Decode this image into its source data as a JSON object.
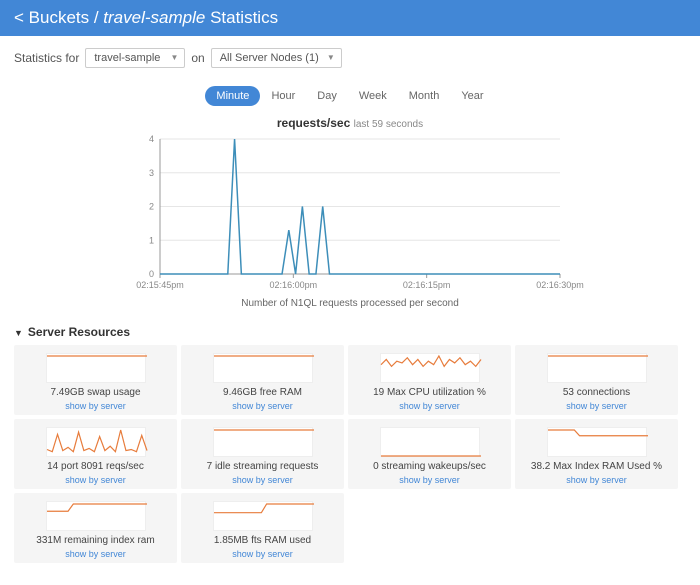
{
  "header": {
    "back_label": "< Buckets",
    "sep": " / ",
    "bucket_name": "travel-sample",
    "suffix": " Statistics"
  },
  "controls": {
    "label_prefix": "Statistics for",
    "bucket_select": "travel-sample",
    "label_on": "on",
    "nodes_select": "All Server Nodes (1)"
  },
  "time_tabs": [
    "Minute",
    "Hour",
    "Day",
    "Week",
    "Month",
    "Year"
  ],
  "time_tab_active": 0,
  "main_chart": {
    "title": "requests/sec",
    "subtitle": "last 59 seconds",
    "caption": "Number of N1QL requests processed per second",
    "ylim": [
      0,
      4
    ],
    "yticks": [
      0,
      1,
      2,
      3,
      4
    ],
    "xticks": [
      "02:15:45pm",
      "02:16:00pm",
      "02:16:15pm",
      "02:16:30pm"
    ],
    "grid_color": "#e6e6e6",
    "axis_color": "#999",
    "line_color": "#3d8eb9",
    "background": "#ffffff",
    "data": [
      0,
      0,
      0,
      0,
      0,
      0,
      0,
      0,
      0,
      0,
      0,
      4,
      0,
      0,
      0,
      0,
      0,
      0,
      0,
      1.3,
      0,
      2,
      0,
      0,
      2,
      0,
      0,
      0,
      0,
      0,
      0,
      0,
      0,
      0,
      0,
      0,
      0,
      0,
      0,
      0,
      0,
      0,
      0,
      0,
      0,
      0,
      0,
      0,
      0,
      0,
      0,
      0,
      0,
      0,
      0,
      0,
      0,
      0,
      0,
      0
    ]
  },
  "section_title": "Server Resources",
  "tile_link_label": "show by server",
  "tile_line_color": "#e77c3c",
  "tiles": [
    {
      "label": "7.49GB swap usage",
      "data": [
        18,
        18,
        18,
        18,
        18,
        18,
        18,
        18,
        18,
        18,
        18,
        18,
        18,
        18,
        18,
        18,
        18,
        18,
        18,
        18
      ]
    },
    {
      "label": "9.46GB free RAM",
      "data": [
        16,
        16,
        16,
        16,
        16,
        16,
        16,
        16,
        16,
        16,
        16,
        16,
        16,
        16,
        16,
        16,
        16,
        16,
        16,
        16
      ]
    },
    {
      "label": "19 Max CPU utilization %",
      "data": [
        10,
        13,
        9,
        12,
        11,
        14,
        10,
        13,
        9,
        12,
        10,
        15,
        9,
        13,
        11,
        14,
        10,
        12,
        9,
        13
      ]
    },
    {
      "label": "53 connections",
      "data": [
        15,
        15,
        15,
        15,
        15,
        15,
        15,
        15,
        15,
        15,
        15,
        15,
        15,
        15,
        15,
        15,
        15,
        15,
        15,
        15
      ]
    },
    {
      "label": "14 port 8091 reqs/sec",
      "data": [
        6,
        4,
        20,
        5,
        8,
        4,
        22,
        5,
        7,
        4,
        18,
        5,
        9,
        4,
        24,
        5,
        6,
        4,
        19,
        5
      ]
    },
    {
      "label": "7 idle streaming requests",
      "data": [
        15,
        15,
        15,
        15,
        15,
        15,
        15,
        15,
        15,
        15,
        15,
        15,
        15,
        15,
        15,
        15,
        15,
        15,
        15,
        15
      ]
    },
    {
      "label": "0 streaming wakeups/sec",
      "data": [
        0,
        0,
        0,
        0,
        0,
        0,
        0,
        0,
        0,
        0,
        0,
        0,
        0,
        0,
        0,
        0,
        0,
        0,
        0,
        0
      ]
    },
    {
      "label": "38.2 Max Index RAM Used %",
      "data": [
        18,
        18,
        18,
        18,
        18,
        18,
        14,
        14,
        14,
        14,
        14,
        14,
        14,
        14,
        14,
        14,
        14,
        14,
        14,
        14
      ]
    },
    {
      "label": "331M remaining index ram",
      "data": [
        13,
        13,
        13,
        13,
        13,
        18,
        18,
        18,
        18,
        18,
        18,
        18,
        18,
        18,
        18,
        18,
        18,
        18,
        18,
        18
      ]
    },
    {
      "label": "1.85MB fts RAM used",
      "data": [
        12,
        12,
        12,
        12,
        12,
        12,
        12,
        12,
        12,
        12,
        18,
        18,
        18,
        18,
        18,
        18,
        18,
        18,
        18,
        18
      ]
    }
  ]
}
